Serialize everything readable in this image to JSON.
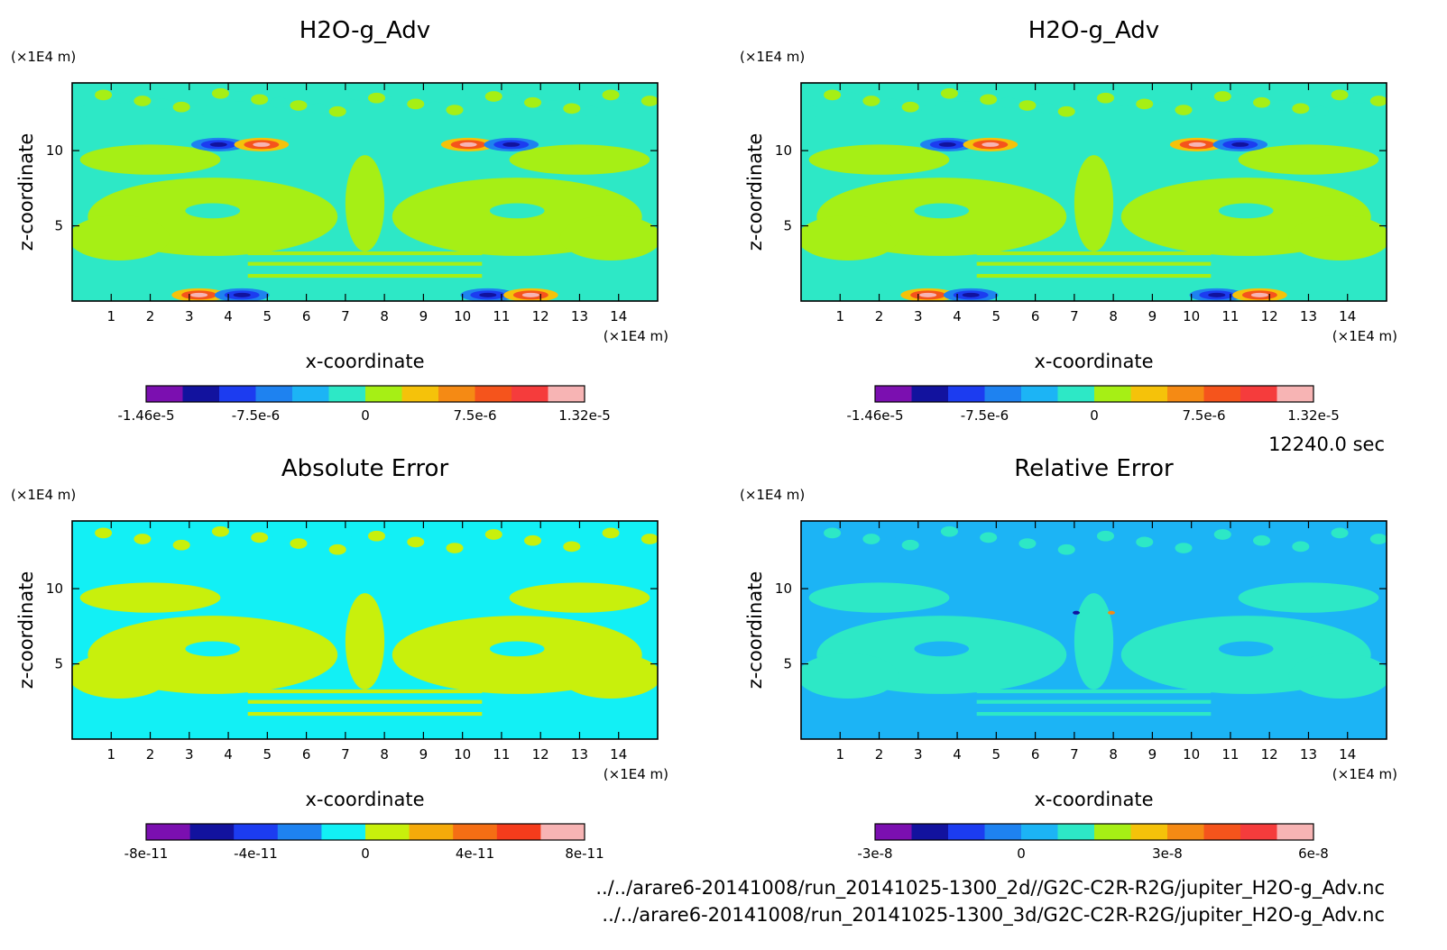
{
  "time_label": "12240.0 sec",
  "file_paths": [
    "../../arare6-20141008/run_20141025-1300_2d//G2C-C2R-R2G/jupiter_H2O-g_Adv.nc",
    "../../arare6-20141008/run_20141025-1300_3d/G2C-C2R-R2G/jupiter_H2O-g_Adv.nc"
  ],
  "chart_data": [
    {
      "type": "heatmap",
      "title": "H2O-g_Adv",
      "xlabel": "x-coordinate",
      "ylabel": "z-coordinate",
      "x_unit": "(×1E4 m)",
      "y_unit": "(×1E4 m)",
      "xlim": [
        0,
        15
      ],
      "ylim": [
        0,
        14.5
      ],
      "xticks": [
        "1",
        "2",
        "3",
        "4",
        "5",
        "6",
        "7",
        "8",
        "9",
        "10",
        "11",
        "12",
        "13",
        "14"
      ],
      "yticks": [
        "5",
        "10"
      ],
      "colorbar": {
        "colors": [
          "#7b0fb0",
          "#12129e",
          "#1c3cf0",
          "#1e82f0",
          "#1cb4f5",
          "#2de8c6",
          "#a6ef15",
          "#f5c20a",
          "#f58a14",
          "#f5541c",
          "#f53c3c",
          "#f7b4b4"
        ],
        "tick_labels": [
          "-1.46e-5",
          "-7.5e-6",
          "0",
          "7.5e-6",
          "1.32e-5"
        ]
      },
      "dominant_colors": [
        "#2de8c6",
        "#a6ef15"
      ]
    },
    {
      "type": "heatmap",
      "title": "H2O-g_Adv",
      "xlabel": "x-coordinate",
      "ylabel": "z-coordinate",
      "x_unit": "(×1E4 m)",
      "y_unit": "(×1E4 m)",
      "xlim": [
        0,
        15
      ],
      "ylim": [
        0,
        14.5
      ],
      "xticks": [
        "1",
        "2",
        "3",
        "4",
        "5",
        "6",
        "7",
        "8",
        "9",
        "10",
        "11",
        "12",
        "13",
        "14"
      ],
      "yticks": [
        "5",
        "10"
      ],
      "colorbar": {
        "colors": [
          "#7b0fb0",
          "#12129e",
          "#1c3cf0",
          "#1e82f0",
          "#1cb4f5",
          "#2de8c6",
          "#a6ef15",
          "#f5c20a",
          "#f58a14",
          "#f5541c",
          "#f53c3c",
          "#f7b4b4"
        ],
        "tick_labels": [
          "-1.46e-5",
          "-7.5e-6",
          "0",
          "7.5e-6",
          "1.32e-5"
        ]
      },
      "dominant_colors": [
        "#2de8c6",
        "#a6ef15"
      ]
    },
    {
      "type": "heatmap",
      "title": "Absolute Error",
      "xlabel": "x-coordinate",
      "ylabel": "z-coordinate",
      "x_unit": "(×1E4 m)",
      "y_unit": "(×1E4 m)",
      "xlim": [
        0,
        15
      ],
      "ylim": [
        0,
        14.5
      ],
      "xticks": [
        "1",
        "2",
        "3",
        "4",
        "5",
        "6",
        "7",
        "8",
        "9",
        "10",
        "11",
        "12",
        "13",
        "14"
      ],
      "yticks": [
        "5",
        "10"
      ],
      "colorbar": {
        "colors": [
          "#7b0fb0",
          "#12129e",
          "#1c3cf0",
          "#1e82f0",
          "#12f0f5",
          "#c8f00c",
          "#f5aa0a",
          "#f56e14",
          "#f53c1c",
          "#f7b4b4"
        ],
        "tick_labels": [
          "-8e-11",
          "-4e-11",
          "0",
          "4e-11",
          "8e-11"
        ]
      },
      "dominant_colors": [
        "#12f0f5",
        "#c8f00c"
      ]
    },
    {
      "type": "heatmap",
      "title": "Relative Error",
      "xlabel": "x-coordinate",
      "ylabel": "z-coordinate",
      "x_unit": "(×1E4 m)",
      "y_unit": "(×1E4 m)",
      "xlim": [
        0,
        15
      ],
      "ylim": [
        0,
        14.5
      ],
      "xticks": [
        "1",
        "2",
        "3",
        "4",
        "5",
        "6",
        "7",
        "8",
        "9",
        "10",
        "11",
        "12",
        "13",
        "14"
      ],
      "yticks": [
        "5",
        "10"
      ],
      "colorbar": {
        "colors": [
          "#7b0fb0",
          "#12129e",
          "#1c3cf0",
          "#1e82f0",
          "#1cb4f5",
          "#2de8c6",
          "#a6ef15",
          "#f5c20a",
          "#f58a14",
          "#f5541c",
          "#f53c3c",
          "#f7b4b4"
        ],
        "tick_labels": [
          "-3e-8",
          "0",
          "3e-8",
          "6e-8"
        ]
      },
      "dominant_colors": [
        "#1cb4f5",
        "#2de8c6"
      ]
    }
  ]
}
